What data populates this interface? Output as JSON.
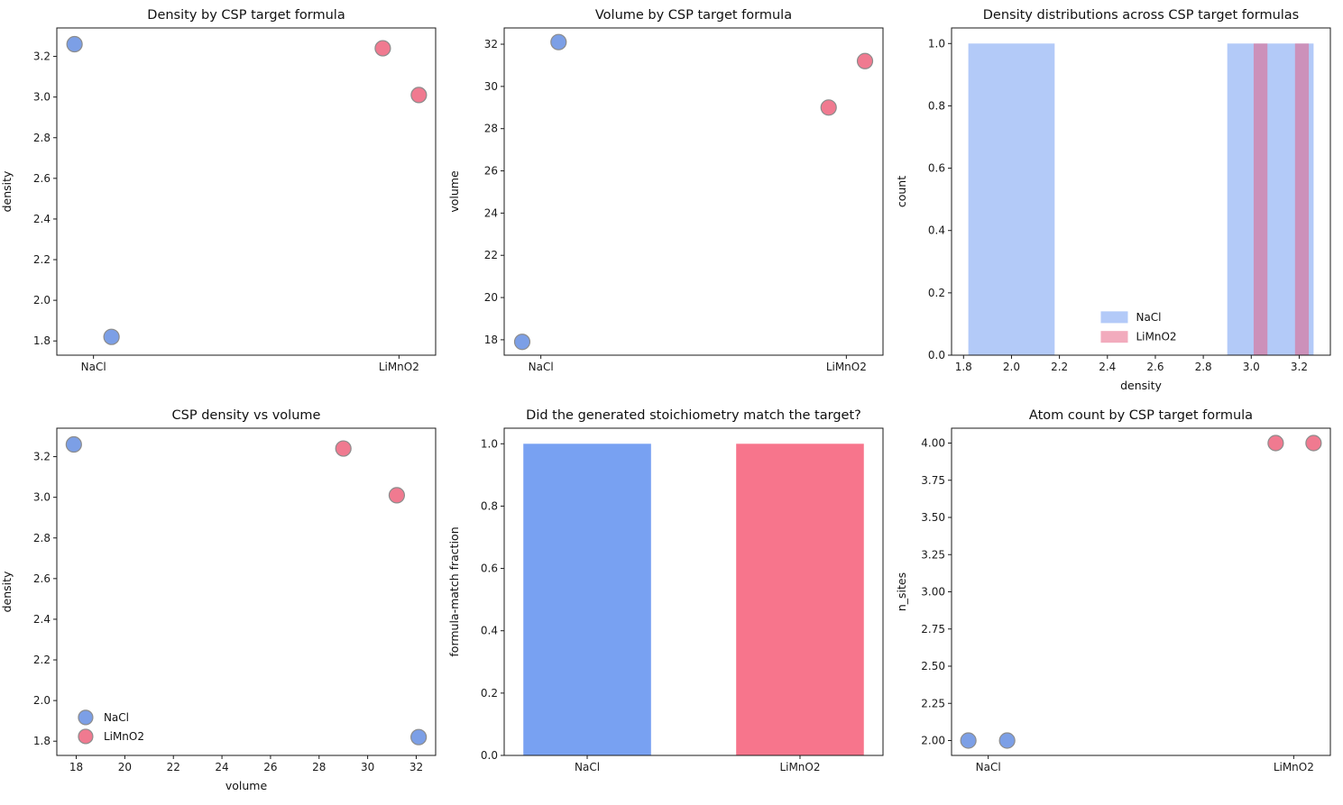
{
  "figure": {
    "background": "#ffffff",
    "axis_color": "#1a1a1a",
    "text_color": "#111111"
  },
  "colors": {
    "nacl_marker": "#7C9FE6",
    "limno2_marker": "#F07A90",
    "nacl_bar": "#78A1F2",
    "limno2_bar": "#F7758C",
    "nacl_hist_fill": "rgba(104,150,242,0.5)",
    "limno2_hist_fill": "rgba(229,87,123,0.5)",
    "marker_edge": "#8c8c8c"
  },
  "chart_data": [
    {
      "type": "scatter",
      "variant": "strip",
      "title": "Density by CSP target formula",
      "xlabel": "",
      "ylabel": "density",
      "x_categories": [
        "NaCl",
        "LiMnO2"
      ],
      "xlim": [
        -0.12,
        1.12
      ],
      "ylim": [
        1.73,
        3.34
      ],
      "xticks": {
        "values": [
          0,
          1
        ],
        "labels": [
          "NaCl",
          "LiMnO2"
        ]
      },
      "yticks": {
        "values": [
          1.8,
          2.0,
          2.2,
          2.4,
          2.6,
          2.8,
          3.0,
          3.2
        ],
        "labels": [
          "1.8",
          "2.0",
          "2.2",
          "2.4",
          "2.6",
          "2.8",
          "3.0",
          "3.2"
        ]
      },
      "series_colors": {
        "NaCl": "#7C9FE6",
        "LiMnO2": "#F07A90"
      },
      "points": [
        {
          "x": -0.062,
          "y": 3.26,
          "series": "NaCl"
        },
        {
          "x": 0.059,
          "y": 1.82,
          "series": "NaCl"
        },
        {
          "x": 0.947,
          "y": 3.24,
          "series": "LiMnO2"
        },
        {
          "x": 1.065,
          "y": 3.01,
          "series": "LiMnO2"
        }
      ]
    },
    {
      "type": "scatter",
      "variant": "strip",
      "title": "Volume by CSP target formula",
      "xlabel": "",
      "ylabel": "volume",
      "x_categories": [
        "NaCl",
        "LiMnO2"
      ],
      "xlim": [
        -0.12,
        1.12
      ],
      "ylim": [
        17.27,
        32.77
      ],
      "xticks": {
        "values": [
          0,
          1
        ],
        "labels": [
          "NaCl",
          "LiMnO2"
        ]
      },
      "yticks": {
        "values": [
          18,
          20,
          22,
          24,
          26,
          28,
          30,
          32
        ],
        "labels": [
          "18",
          "20",
          "22",
          "24",
          "26",
          "28",
          "30",
          "32"
        ]
      },
      "series_colors": {
        "NaCl": "#7C9FE6",
        "LiMnO2": "#F07A90"
      },
      "points": [
        {
          "x": -0.061,
          "y": 17.9,
          "series": "NaCl"
        },
        {
          "x": 0.058,
          "y": 32.1,
          "series": "NaCl"
        },
        {
          "x": 0.942,
          "y": 29.0,
          "series": "LiMnO2"
        },
        {
          "x": 1.061,
          "y": 31.2,
          "series": "LiMnO2"
        }
      ]
    },
    {
      "type": "hist",
      "title": "Density distributions across CSP target formulas",
      "xlabel": "density",
      "ylabel": "count",
      "xlim": [
        1.75,
        3.33
      ],
      "ylim": [
        0,
        1.05
      ],
      "xticks": {
        "values": [
          1.8,
          2.0,
          2.2,
          2.4,
          2.6,
          2.8,
          3.0,
          3.2
        ],
        "labels": [
          "1.8",
          "2.0",
          "2.2",
          "2.4",
          "2.6",
          "2.8",
          "3.0",
          "3.2"
        ]
      },
      "yticks": {
        "values": [
          0.0,
          0.2,
          0.4,
          0.6,
          0.8,
          1.0
        ],
        "labels": [
          "0.0",
          "0.2",
          "0.4",
          "0.6",
          "0.8",
          "1.0"
        ]
      },
      "series": [
        {
          "name": "NaCl",
          "fill": "rgba(104,150,242,0.5)",
          "bins": [
            {
              "x0": 1.82,
              "x1": 2.18,
              "count": 1
            },
            {
              "x0": 2.9,
              "x1": 3.26,
              "count": 1
            }
          ]
        },
        {
          "name": "LiMnO2",
          "fill": "rgba(229,87,123,0.5)",
          "bins": [
            {
              "x0": 3.01,
              "x1": 3.0675,
              "count": 1
            },
            {
              "x0": 3.1825,
              "x1": 3.24,
              "count": 1
            }
          ]
        }
      ],
      "legend": {
        "x": 0.394,
        "y": 0.884,
        "dy": 0.06,
        "marker": "rect",
        "entries": [
          {
            "label": "NaCl",
            "color": "rgba(104,150,242,0.5)"
          },
          {
            "label": "LiMnO2",
            "color": "rgba(229,87,123,0.5)"
          }
        ]
      }
    },
    {
      "type": "scatter",
      "variant": "xy",
      "title": "CSP density vs volume",
      "xlabel": "volume",
      "ylabel": "density",
      "xlim": [
        17.2,
        32.8
      ],
      "ylim": [
        1.73,
        3.34
      ],
      "xticks": {
        "values": [
          18,
          20,
          22,
          24,
          26,
          28,
          30,
          32
        ],
        "labels": [
          "18",
          "20",
          "22",
          "24",
          "26",
          "28",
          "30",
          "32"
        ]
      },
      "yticks": {
        "values": [
          1.8,
          2.0,
          2.2,
          2.4,
          2.6,
          2.8,
          3.0,
          3.2
        ],
        "labels": [
          "1.8",
          "2.0",
          "2.2",
          "2.4",
          "2.6",
          "2.8",
          "3.0",
          "3.2"
        ]
      },
      "series_colors": {
        "NaCl": "#7C9FE6",
        "LiMnO2": "#F07A90"
      },
      "points": [
        {
          "x": 17.9,
          "y": 3.26,
          "series": "NaCl"
        },
        {
          "x": 29.0,
          "y": 3.24,
          "series": "LiMnO2"
        },
        {
          "x": 31.2,
          "y": 3.01,
          "series": "LiMnO2"
        },
        {
          "x": 32.1,
          "y": 1.82,
          "series": "NaCl"
        }
      ],
      "legend": {
        "x": 0.057,
        "y": 0.884,
        "dy": 0.058,
        "marker": "circle",
        "entries": [
          {
            "label": "NaCl",
            "color": "#7C9FE6"
          },
          {
            "label": "LiMnO2",
            "color": "#F07A90"
          }
        ]
      }
    },
    {
      "type": "bar",
      "title": "Did the generated stoichiometry match the target?",
      "xlabel": "",
      "ylabel": "formula-match fraction",
      "categories": [
        "NaCl",
        "LiMnO2"
      ],
      "values": [
        1.0,
        1.0
      ],
      "colors": [
        "#78A1F2",
        "#F7758C"
      ],
      "bar_width": 0.6,
      "xlim": [
        -0.39,
        1.39
      ],
      "ylim": [
        0,
        1.05
      ],
      "xticks": {
        "values": [
          0,
          1
        ],
        "labels": [
          "NaCl",
          "LiMnO2"
        ]
      },
      "yticks": {
        "values": [
          0.0,
          0.2,
          0.4,
          0.6,
          0.8,
          1.0
        ],
        "labels": [
          "0.0",
          "0.2",
          "0.4",
          "0.6",
          "0.8",
          "1.0"
        ]
      }
    },
    {
      "type": "scatter",
      "variant": "strip",
      "title": "Atom count by CSP target formula",
      "xlabel": "",
      "ylabel": "n_sites",
      "x_categories": [
        "NaCl",
        "LiMnO2"
      ],
      "xlim": [
        -0.12,
        1.12
      ],
      "ylim": [
        1.9,
        4.1
      ],
      "xticks": {
        "values": [
          0,
          1
        ],
        "labels": [
          "NaCl",
          "LiMnO2"
        ]
      },
      "yticks": {
        "values": [
          2.0,
          2.25,
          2.5,
          2.75,
          3.0,
          3.25,
          3.5,
          3.75,
          4.0
        ],
        "labels": [
          "2.00",
          "2.25",
          "2.50",
          "2.75",
          "3.00",
          "3.25",
          "3.50",
          "3.75",
          "4.00"
        ]
      },
      "series_colors": {
        "NaCl": "#7C9FE6",
        "LiMnO2": "#F07A90"
      },
      "points": [
        {
          "x": -0.065,
          "y": 2.0,
          "series": "NaCl"
        },
        {
          "x": 0.062,
          "y": 2.0,
          "series": "NaCl"
        },
        {
          "x": 0.941,
          "y": 4.0,
          "series": "LiMnO2"
        },
        {
          "x": 1.065,
          "y": 4.0,
          "series": "LiMnO2"
        }
      ]
    }
  ]
}
